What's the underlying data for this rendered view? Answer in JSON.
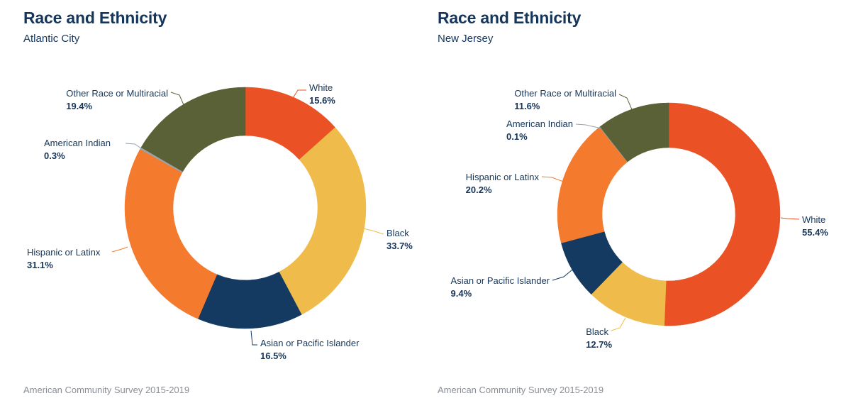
{
  "source": "American Community Survey 2015-2019",
  "chart_data": [
    {
      "type": "pie",
      "variant": "donut",
      "title": "Race and Ethnicity",
      "subtitle": "Atlantic City",
      "source": "American Community Survey 2015-2019",
      "unit": "%",
      "slices": [
        {
          "label": "White",
          "value": 15.6,
          "display": "15.6%",
          "color": "#ea5125"
        },
        {
          "label": "Black",
          "value": 33.7,
          "display": "33.7%",
          "color": "#efbb4b"
        },
        {
          "label": "Asian or Pacific Islander",
          "value": 16.5,
          "display": "16.5%",
          "color": "#153a62"
        },
        {
          "label": "Hispanic or Latinx",
          "value": 31.1,
          "display": "31.1%",
          "color": "#f47b2e"
        },
        {
          "label": "American Indian",
          "value": 0.3,
          "display": "0.3%",
          "color": "#98a3ad"
        },
        {
          "label": "Other Race or Multiracial",
          "value": 19.4,
          "display": "19.4%",
          "color": "#5b6136"
        }
      ]
    },
    {
      "type": "pie",
      "variant": "donut",
      "title": "Race and Ethnicity",
      "subtitle": "New Jersey",
      "source": "American Community Survey 2015-2019",
      "unit": "%",
      "slices": [
        {
          "label": "White",
          "value": 55.4,
          "display": "55.4%",
          "color": "#ea5125"
        },
        {
          "label": "Black",
          "value": 12.7,
          "display": "12.7%",
          "color": "#efbb4b"
        },
        {
          "label": "Asian or Pacific Islander",
          "value": 9.4,
          "display": "9.4%",
          "color": "#153a62"
        },
        {
          "label": "Hispanic or Latinx",
          "value": 20.2,
          "display": "20.2%",
          "color": "#f47b2e"
        },
        {
          "label": "American Indian",
          "value": 0.1,
          "display": "0.1%",
          "color": "#98a3ad"
        },
        {
          "label": "Other Race or Multiracial",
          "value": 11.6,
          "display": "11.6%",
          "color": "#5b6136"
        }
      ]
    }
  ]
}
